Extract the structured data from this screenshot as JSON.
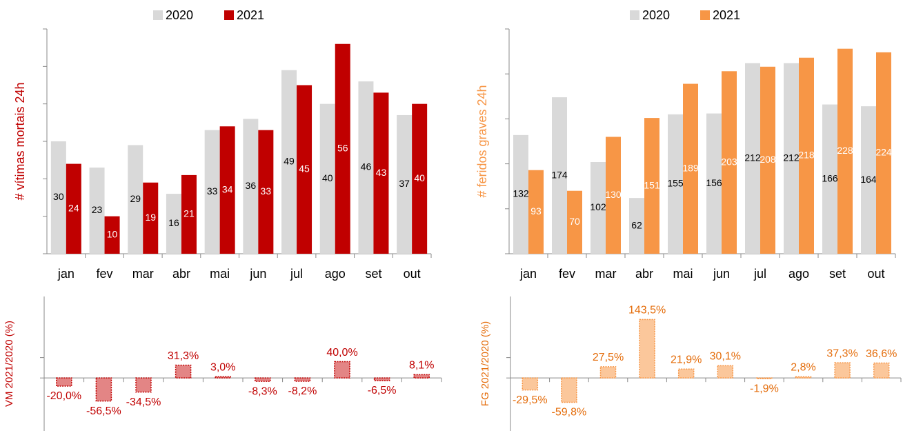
{
  "chart_data": [
    {
      "type": "bar",
      "ylabel": "# vítimas mortais 24h",
      "categories": [
        "jan",
        "fev",
        "mar",
        "abr",
        "mai",
        "jun",
        "jul",
        "ago",
        "set",
        "out"
      ],
      "series": [
        {
          "name": "2020",
          "color": "#d9d9d9",
          "values": [
            30,
            23,
            29,
            16,
            33,
            36,
            49,
            40,
            46,
            37
          ]
        },
        {
          "name": "2021",
          "color": "#c00000",
          "values": [
            24,
            10,
            19,
            21,
            34,
            33,
            45,
            56,
            43,
            40
          ]
        }
      ],
      "ylim": [
        0,
        60
      ],
      "yticks": [
        0,
        10,
        20,
        30,
        40,
        50,
        60
      ]
    },
    {
      "type": "bar",
      "ylabel": "# feridos graves 24h",
      "categories": [
        "jan",
        "fev",
        "mar",
        "abr",
        "mai",
        "jun",
        "jul",
        "ago",
        "set",
        "out"
      ],
      "series": [
        {
          "name": "2020",
          "color": "#d9d9d9",
          "values": [
            132,
            174,
            102,
            62,
            155,
            156,
            212,
            212,
            166,
            164
          ]
        },
        {
          "name": "2021",
          "color": "#f79646",
          "values": [
            93,
            70,
            130,
            151,
            189,
            203,
            208,
            218,
            228,
            224
          ]
        }
      ],
      "ylim": [
        0,
        250
      ],
      "yticks": [
        0,
        50,
        100,
        150,
        200,
        250
      ]
    },
    {
      "type": "bar",
      "ylabel": "VM 2021/2020 (%)",
      "values": [
        -20.0,
        -56.5,
        -34.5,
        31.3,
        3.0,
        -8.3,
        -8.2,
        40.0,
        -6.5,
        8.1
      ],
      "value_labels": [
        "-20,0%",
        "-56,5%",
        "-34,5%",
        "31,3%",
        "3,0%",
        "-8,3%",
        "-8,2%",
        "40,0%",
        "-6,5%",
        "8,1%"
      ],
      "color": "#e38585",
      "edge_color": "#c00000",
      "ylim": [
        -130,
        200
      ],
      "yticks": [
        0,
        50
      ]
    },
    {
      "type": "bar",
      "ylabel": "FG 2021/2020 (%)",
      "values": [
        -29.5,
        -59.8,
        27.5,
        143.5,
        21.9,
        30.1,
        -1.9,
        2.8,
        37.3,
        36.6
      ],
      "value_labels": [
        "-29,5%",
        "-59,8%",
        "27,5%",
        "143,5%",
        "21,9%",
        "30,1%",
        "-1,9%",
        "2,8%",
        "37,3%",
        "36,6%"
      ],
      "color": "#fbc79b",
      "edge_color": "#f79646",
      "ylim": [
        -130,
        200
      ],
      "yticks": [
        0,
        50
      ]
    }
  ]
}
